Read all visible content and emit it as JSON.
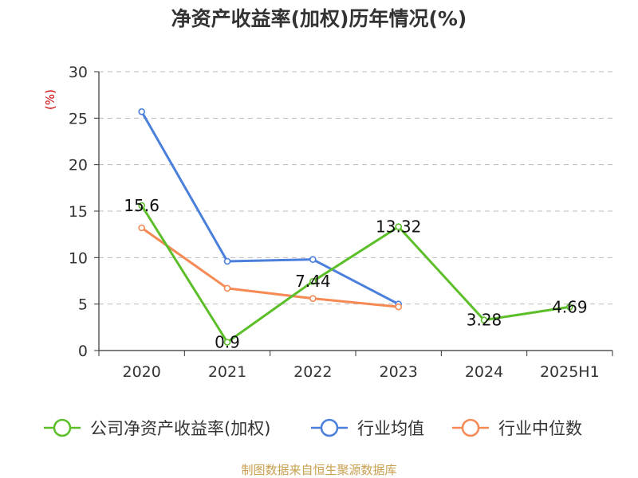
{
  "chart_data": {
    "type": "line",
    "title": "净资产收益率(加权)历年情况(%)",
    "ylabel": "(%)",
    "categories": [
      "2020",
      "2021",
      "2022",
      "2023",
      "2024",
      "2025H1"
    ],
    "ylim": [
      0,
      30
    ],
    "yticks": [
      0,
      5,
      10,
      15,
      20,
      25,
      30
    ],
    "grid": true,
    "legend_position": "bottom",
    "series": [
      {
        "name": "公司净资产收益率(加权)",
        "color": "#5cbf2a",
        "values": [
          15.6,
          0.9,
          7.44,
          13.32,
          3.28,
          4.69
        ],
        "labels": [
          "15.6",
          "0.9",
          "7.44",
          "13.32",
          "3.28",
          "4.69"
        ]
      },
      {
        "name": "行业均值",
        "color": "#4a7fdc",
        "values": [
          25.7,
          9.6,
          9.8,
          5.0,
          null,
          null
        ]
      },
      {
        "name": "行业中位数",
        "color": "#f58a55",
        "values": [
          13.2,
          6.7,
          5.6,
          4.7,
          null,
          null
        ]
      }
    ],
    "source": "制图数据来自恒生聚源数据库"
  }
}
